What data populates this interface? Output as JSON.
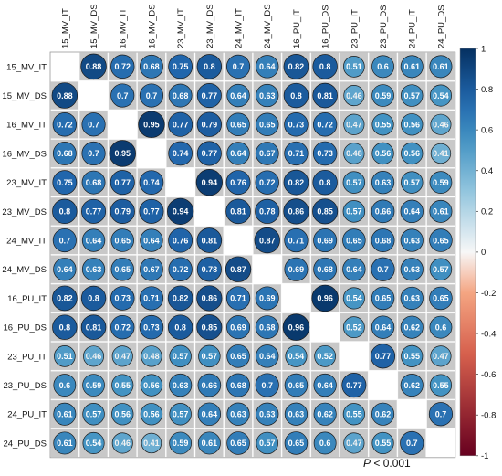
{
  "chart_data": {
    "type": "heatmap",
    "labels": [
      "15_MV_IT",
      "15_MV_DS",
      "16_MV_IT",
      "16_MV_DS",
      "23_MV_IT",
      "23_MV_DS",
      "24_MV_IT",
      "24_MV_DS",
      "16_PU_IT",
      "16_PU_DS",
      "23_PU_IT",
      "23_PU_DS",
      "24_PU_IT",
      "24_PU_DS"
    ],
    "matrix": [
      [
        null,
        0.88,
        0.72,
        0.68,
        0.75,
        0.8,
        0.7,
        0.64,
        0.82,
        0.8,
        0.51,
        0.6,
        0.61,
        0.61
      ],
      [
        0.88,
        null,
        0.7,
        0.7,
        0.68,
        0.77,
        0.64,
        0.63,
        0.8,
        0.81,
        0.46,
        0.59,
        0.57,
        0.54
      ],
      [
        0.72,
        0.7,
        null,
        0.95,
        0.77,
        0.79,
        0.65,
        0.65,
        0.73,
        0.72,
        0.47,
        0.55,
        0.56,
        0.46
      ],
      [
        0.68,
        0.7,
        0.95,
        null,
        0.74,
        0.77,
        0.64,
        0.67,
        0.71,
        0.73,
        0.48,
        0.56,
        0.56,
        0.41
      ],
      [
        0.75,
        0.68,
        0.77,
        0.74,
        null,
        0.94,
        0.76,
        0.72,
        0.82,
        0.8,
        0.57,
        0.63,
        0.57,
        0.59
      ],
      [
        0.8,
        0.77,
        0.79,
        0.77,
        0.94,
        null,
        0.81,
        0.78,
        0.86,
        0.85,
        0.57,
        0.66,
        0.64,
        0.61
      ],
      [
        0.7,
        0.64,
        0.65,
        0.64,
        0.76,
        0.81,
        null,
        0.87,
        0.71,
        0.69,
        0.65,
        0.68,
        0.63,
        0.65
      ],
      [
        0.64,
        0.63,
        0.65,
        0.67,
        0.72,
        0.78,
        0.87,
        null,
        0.69,
        0.68,
        0.64,
        0.7,
        0.63,
        0.57
      ],
      [
        0.82,
        0.8,
        0.73,
        0.71,
        0.82,
        0.86,
        0.71,
        0.69,
        null,
        0.96,
        0.54,
        0.65,
        0.63,
        0.65
      ],
      [
        0.8,
        0.81,
        0.72,
        0.73,
        0.8,
        0.85,
        0.69,
        0.68,
        0.96,
        null,
        0.52,
        0.64,
        0.62,
        0.6
      ],
      [
        0.51,
        0.46,
        0.47,
        0.48,
        0.57,
        0.57,
        0.65,
        0.64,
        0.54,
        0.52,
        null,
        0.77,
        0.55,
        0.47
      ],
      [
        0.6,
        0.59,
        0.55,
        0.56,
        0.63,
        0.66,
        0.68,
        0.7,
        0.65,
        0.64,
        0.77,
        null,
        0.62,
        0.55
      ],
      [
        0.61,
        0.57,
        0.56,
        0.56,
        0.57,
        0.64,
        0.63,
        0.63,
        0.63,
        0.62,
        0.55,
        0.62,
        null,
        0.7
      ],
      [
        0.61,
        0.54,
        0.46,
        0.41,
        0.59,
        0.61,
        0.65,
        0.57,
        0.65,
        0.6,
        0.47,
        0.55,
        0.7,
        null
      ]
    ],
    "colorbar": {
      "range": [
        -1,
        1
      ],
      "ticks": [
        "1",
        "0.8",
        "0.6",
        "0.4",
        "0.2",
        "0",
        "-0.2",
        "-0.4",
        "-0.6",
        "-0.8",
        "-1"
      ]
    },
    "note_prefix": "P",
    "note_text": " < 0.001"
  },
  "colors": {
    "strong_positive": "#053061",
    "mid_positive": "#2166ac",
    "light_positive": "#92c5de",
    "neutral": "#f7f7f7",
    "light_negative": "#f4a582",
    "strong_negative": "#67001f",
    "panel_background": "#c8c8c8"
  }
}
